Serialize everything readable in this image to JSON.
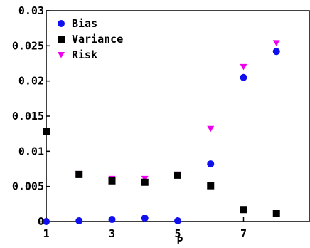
{
  "chart_data": {
    "type": "scatter",
    "xlabel": "P",
    "ylabel": "",
    "xlim": [
      1,
      9
    ],
    "ylim": [
      0,
      0.03
    ],
    "x_ticks": [
      1,
      3,
      5,
      7
    ],
    "y_ticks": [
      0,
      0.005,
      0.01,
      0.015,
      0.02,
      0.025,
      0.03
    ],
    "y_tick_labels": [
      "0",
      "0.005",
      "0.01",
      "0.015",
      "0.02",
      "0.025",
      "0.03"
    ],
    "grid": false,
    "legend_position": "top-left",
    "series": [
      {
        "name": "Bias",
        "marker": "circle",
        "color": "#1010ee",
        "x": [
          1,
          2,
          3,
          4,
          5,
          6,
          7,
          8
        ],
        "y": [
          0.0,
          0.0001,
          0.0003,
          0.0005,
          0.0001,
          0.0082,
          0.0205,
          0.0242
        ]
      },
      {
        "name": "Variance",
        "marker": "square",
        "color": "#000000",
        "x": [
          1,
          2,
          3,
          4,
          5,
          6,
          7,
          8
        ],
        "y": [
          0.0128,
          0.0067,
          0.0058,
          0.0056,
          0.0066,
          0.0051,
          0.0017,
          0.0012
        ]
      },
      {
        "name": "Risk",
        "marker": "triangle-down",
        "color": "#ee00ee",
        "x": [
          1,
          2,
          3,
          4,
          5,
          6,
          7,
          8
        ],
        "y": [
          0.0129,
          0.0068,
          0.0061,
          0.0061,
          0.0067,
          0.0132,
          0.022,
          0.0254
        ]
      }
    ]
  }
}
